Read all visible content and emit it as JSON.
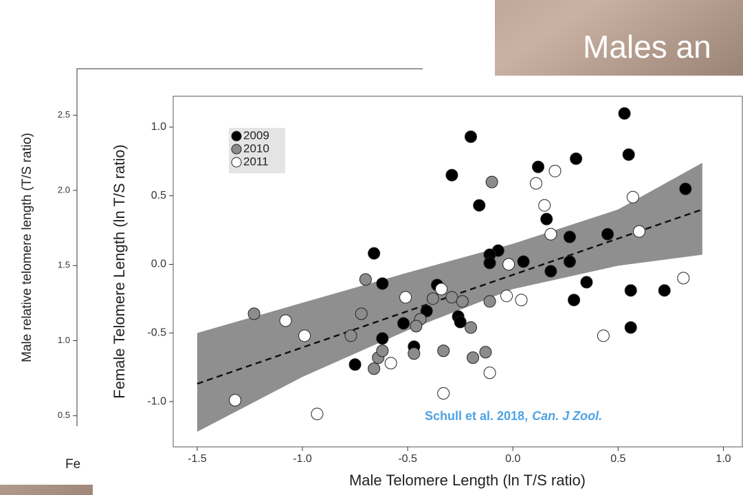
{
  "slide_title": "Males an",
  "chart_data": [
    {
      "type": "scatter",
      "ylabel": "Male relative telomere length (T/S ratio)",
      "xlabel": "Fe",
      "ylim": [
        0.43,
        2.81
      ],
      "yticks": [
        0.5,
        {
          "value": 1,
          "label": "1.0"
        },
        1.5,
        {
          "value": 2,
          "label": "2.0"
        },
        2.5
      ]
    },
    {
      "type": "scatter",
      "xlabel": "Male Telomere Length (ln T/S ratio)",
      "ylabel": "Female Telomere Length (ln T/S ratio)",
      "xlim": [
        -1.614,
        1.09
      ],
      "ylim": [
        -1.33,
        1.225
      ],
      "xticks": [
        -1.5,
        {
          "value": -1,
          "label": "-1.0"
        },
        -0.5,
        {
          "value": 0,
          "label": "0.0"
        },
        0.5,
        {
          "value": 1,
          "label": "1.0"
        }
      ],
      "yticks": [
        {
          "value": -1,
          "label": "-1.0"
        },
        -0.5,
        {
          "value": 0,
          "label": "0.0"
        },
        0.5,
        {
          "value": 1,
          "label": "1.0"
        }
      ],
      "annotation_parts": [
        "Schull et al. 2018,",
        "Can. J Zool."
      ],
      "fit_line": {
        "x": [
          -1.5,
          0.9
        ],
        "y": [
          -0.87,
          0.4
        ]
      },
      "confidence_band": {
        "x": [
          -1.5,
          -1,
          -0.5,
          0,
          0.5,
          0.9
        ],
        "upper": [
          -0.5,
          -0.28,
          -0.06,
          0.15,
          0.4,
          0.74
        ],
        "lower": [
          -1.22,
          -0.82,
          -0.48,
          -0.18,
          -0.01,
          0.07
        ]
      },
      "series": [
        {
          "name": "2009",
          "color": "#000000",
          "x": [
            0.53,
            0.55,
            0.82,
            0.3,
            0.12,
            -0.2,
            -0.29,
            -0.16,
            0.16,
            0.27,
            0.45,
            -0.07,
            -0.11,
            -0.11,
            0.05,
            0.27,
            0.18,
            0.35,
            0.56,
            0.72,
            0.29,
            0.56,
            -0.66,
            -0.62,
            -0.36,
            -0.41,
            -0.26,
            -0.25,
            -0.52,
            -0.62,
            -0.47,
            -0.75
          ],
          "values": [
            1.1,
            0.8,
            0.55,
            0.77,
            0.71,
            0.93,
            0.65,
            0.43,
            0.33,
            0.2,
            0.22,
            0.1,
            0.07,
            0.01,
            0.02,
            0.02,
            -0.05,
            -0.13,
            -0.19,
            -0.19,
            -0.26,
            -0.46,
            0.08,
            -0.14,
            -0.15,
            -0.34,
            -0.38,
            -0.42,
            -0.43,
            -0.54,
            -0.6,
            -0.73
          ]
        },
        {
          "name": "2010",
          "color": "#8c8c8c",
          "x": [
            -0.1,
            -0.7,
            -1.23,
            -0.72,
            -0.77,
            -0.44,
            -0.46,
            -0.38,
            -0.29,
            -0.24,
            -0.11,
            -0.2,
            -0.64,
            -0.62,
            -0.47,
            -0.66,
            -0.33,
            -0.19,
            -0.13
          ],
          "values": [
            0.6,
            -0.11,
            -0.36,
            -0.36,
            -0.52,
            -0.4,
            -0.45,
            -0.25,
            -0.24,
            -0.27,
            -0.27,
            -0.46,
            -0.68,
            -0.63,
            -0.65,
            -0.76,
            -0.63,
            -0.68,
            -0.64
          ]
        },
        {
          "name": "2011",
          "color": "#ffffff",
          "x": [
            0.11,
            0.2,
            0.15,
            0.18,
            0.57,
            0.6,
            0.81,
            -0.02,
            -0.03,
            0.04,
            -0.51,
            -0.34,
            -1.08,
            -0.99,
            -0.58,
            -0.11,
            -0.33,
            -1.32,
            -0.93,
            0.43
          ],
          "values": [
            0.59,
            0.68,
            0.43,
            0.22,
            0.49,
            0.24,
            -0.1,
            0.0,
            -0.23,
            -0.26,
            -0.24,
            -0.18,
            -0.41,
            -0.52,
            -0.72,
            -0.79,
            -0.94,
            -0.99,
            -1.09,
            -0.52
          ]
        }
      ]
    }
  ]
}
